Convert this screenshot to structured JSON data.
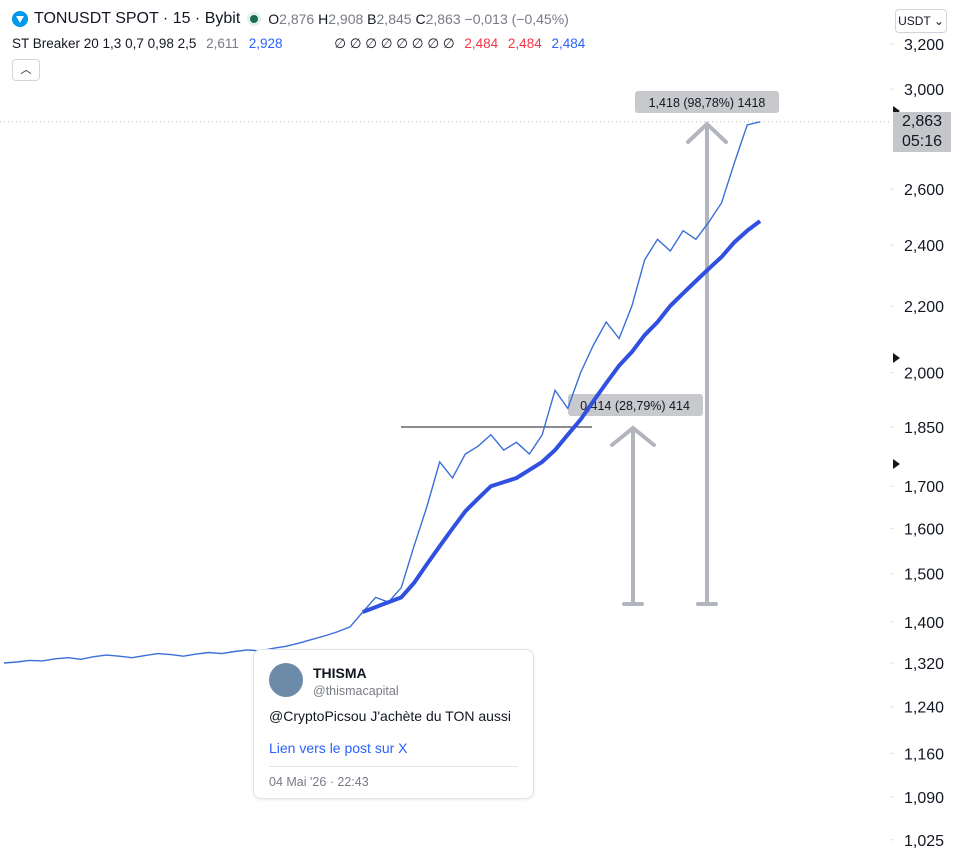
{
  "header": {
    "title": "TONUSDT SPOT · 15 · Bybit",
    "ohlc": [
      {
        "k": "O",
        "v": "2,876"
      },
      {
        "k": "H",
        "v": "2,908"
      },
      {
        "k": "B",
        "v": "2,845"
      },
      {
        "k": "C",
        "v": "2,863"
      }
    ],
    "change": "−0,013 (−0,45%)",
    "currency": "USDT"
  },
  "indicator": {
    "name": "ST Breaker 20 1,3 0,7 0,98 2,5",
    "v1": "2,611",
    "v2": "2,928",
    "empty": "∅ ∅ ∅ ∅ ∅ ∅ ∅ ∅",
    "v3": "2,484",
    "v4": "2,484",
    "v5": "2,484"
  },
  "price_label": {
    "price": "2,863",
    "time": "05:16"
  },
  "measures": [
    "1,418 (98,78%) 1418",
    "0,414 (28,79%) 414"
  ],
  "tweet": {
    "name": "THISMA",
    "handle": "@thismacapital",
    "text": "@CryptoPicsou J'achète du TON aussi",
    "link": "Lien vers le post sur X",
    "date": "04 Mai '26 · 22:43"
  },
  "chart_data": {
    "type": "line",
    "log_scale": true,
    "ylim": [
      1003,
      3408
    ],
    "yticks": [
      {
        "value": 1025,
        "label": "1,025"
      },
      {
        "value": 1090,
        "label": "1,090"
      },
      {
        "value": 1160,
        "label": "1,160"
      },
      {
        "value": 1240,
        "label": "1,240"
      },
      {
        "value": 1320,
        "label": "1,320"
      },
      {
        "value": 1400,
        "label": "1,400"
      },
      {
        "value": 1500,
        "label": "1,500"
      },
      {
        "value": 1600,
        "label": "1,600"
      },
      {
        "value": 1700,
        "label": "1,700"
      },
      {
        "value": 1850,
        "label": "1,850"
      },
      {
        "value": 2000,
        "label": "2,000"
      },
      {
        "value": 2200,
        "label": "2,200"
      },
      {
        "value": 2400,
        "label": "2,400"
      },
      {
        "value": 2600,
        "label": "2,600"
      },
      {
        "value": 3000,
        "label": "3,000"
      },
      {
        "value": 3200,
        "label": "3,200"
      }
    ],
    "categories": [
      null,
      null,
      null,
      null,
      null,
      null,
      null,
      null,
      null,
      null,
      null,
      null,
      null,
      null,
      null,
      null,
      null,
      null,
      null,
      null,
      null,
      null,
      null,
      null,
      null,
      null,
      null,
      null,
      null,
      null,
      null,
      null,
      null,
      null,
      null,
      null,
      null,
      null,
      null,
      null,
      null,
      null,
      null,
      null,
      null,
      null,
      null,
      null,
      null,
      null,
      null,
      null,
      null,
      null,
      null,
      null,
      null,
      null,
      null,
      null
    ],
    "series": [
      {
        "color": "#3b6fd8",
        "values": [
          1320,
          1322,
          1325,
          1324,
          1328,
          1330,
          1327,
          1332,
          1335,
          1333,
          1330,
          1334,
          1338,
          1336,
          1333,
          1337,
          1340,
          1338,
          1342,
          1345,
          1343,
          1348,
          1352,
          1358,
          1365,
          1372,
          1380,
          1390,
          1420,
          1450,
          1440,
          1470,
          1560,
          1650,
          1760,
          1720,
          1780,
          1800,
          1830,
          1790,
          1810,
          1780,
          1830,
          1950,
          1900,
          2000,
          2080,
          2150,
          2100,
          2200,
          2350,
          2420,
          2380,
          2450,
          2420,
          2480,
          2550,
          2700,
          2850,
          2863
        ]
      },
      {
        "color": "#3050e0",
        "values": [
          null,
          null,
          null,
          null,
          null,
          null,
          null,
          null,
          null,
          null,
          null,
          null,
          null,
          null,
          null,
          null,
          null,
          null,
          null,
          null,
          null,
          null,
          null,
          null,
          null,
          null,
          null,
          null,
          1420,
          1430,
          1440,
          1450,
          1480,
          1520,
          1560,
          1600,
          1640,
          1670,
          1700,
          1710,
          1720,
          1740,
          1760,
          1790,
          1830,
          1870,
          1920,
          1970,
          2020,
          2060,
          2110,
          2150,
          2200,
          2240,
          2280,
          2320,
          2360,
          2410,
          2450,
          2484
        ]
      }
    ]
  }
}
